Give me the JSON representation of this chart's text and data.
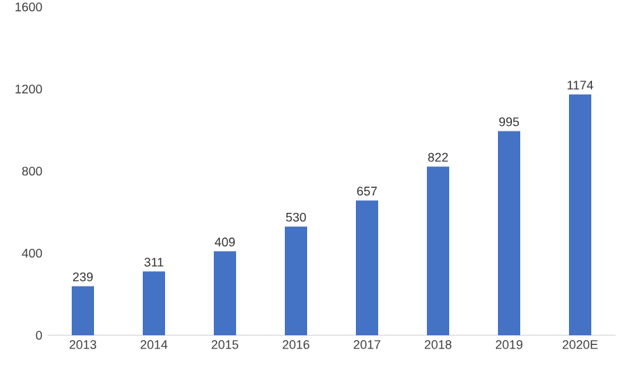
{
  "chart_data": {
    "type": "bar",
    "categories": [
      "2013",
      "2014",
      "2015",
      "2016",
      "2017",
      "2018",
      "2019",
      "2020E"
    ],
    "values": [
      239,
      311,
      409,
      530,
      657,
      822,
      995,
      1174
    ],
    "color": "#4472c4",
    "data_labels": true,
    "ylim": [
      0,
      1600
    ],
    "yticks": [
      0,
      400,
      800,
      1200,
      1600
    ]
  }
}
